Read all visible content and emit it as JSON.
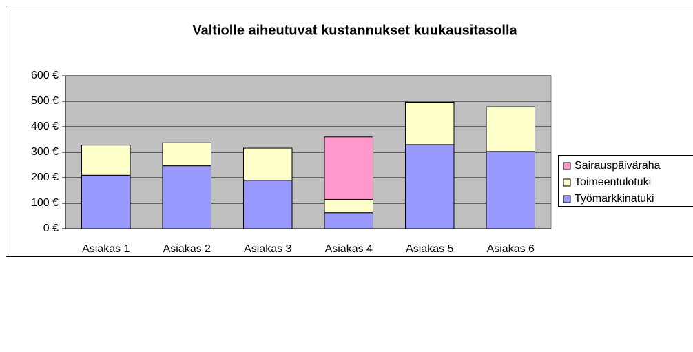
{
  "chart_data": {
    "type": "stacked_bar",
    "title": "Valtiolle aiheutuvat kustannukset kuukausitasolla",
    "categories": [
      "Asiakas 1",
      "Asiakas 2",
      "Asiakas 3",
      "Asiakas 4",
      "Asiakas 5",
      "Asiakas 6"
    ],
    "series": [
      {
        "name": "Työmarkkinatuki",
        "color": "#9999ff",
        "values": [
          210,
          247,
          190,
          63,
          330,
          303
        ]
      },
      {
        "name": "Toimeentulotuki",
        "color": "#ffffcc",
        "values": [
          118,
          90,
          126,
          52,
          166,
          175
        ]
      },
      {
        "name": "Sairauspäiväraha",
        "color": "#ff99cc",
        "values": [
          0,
          0,
          0,
          245,
          0,
          0
        ]
      }
    ],
    "ylim": [
      0,
      600
    ],
    "yticks": [
      {
        "value": 0,
        "label": "0 €"
      },
      {
        "value": 100,
        "label": "100 €"
      },
      {
        "value": 200,
        "label": "200 €"
      },
      {
        "value": 300,
        "label": "300 €"
      },
      {
        "value": 400,
        "label": "400 €"
      },
      {
        "value": 500,
        "label": "500 €"
      },
      {
        "value": 600,
        "label": "600 €"
      }
    ],
    "grid": true,
    "legend": "right"
  }
}
